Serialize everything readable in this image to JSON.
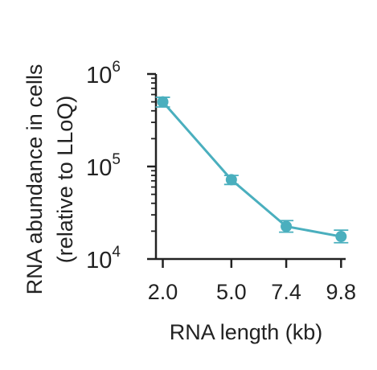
{
  "chart_data": {
    "type": "line",
    "title": "",
    "xlabel": "RNA length (kb)",
    "ylabel_line1": "RNA abundance in cells",
    "ylabel_line2": "(relative to LLoQ)",
    "yscale": "log",
    "ylim": [
      10000,
      1000000
    ],
    "xlim": [
      1.7,
      10.0
    ],
    "x_ticks": [
      2.0,
      5.0,
      7.4,
      9.8
    ],
    "x_tick_labels": [
      "2.0",
      "5.0",
      "7.4",
      "9.8"
    ],
    "y_major_ticks": [
      10000,
      100000,
      1000000
    ],
    "y_tick_labels": [
      {
        "base": "10",
        "exp": "4"
      },
      {
        "base": "10",
        "exp": "5"
      },
      {
        "base": "10",
        "exp": "6"
      }
    ],
    "grid": false,
    "legend": false,
    "color": "#4aafbe",
    "series": [
      {
        "x": [
          2.0,
          5.0,
          7.4,
          9.8
        ],
        "y": [
          500000,
          72000,
          22500,
          17500
        ],
        "error_low": [
          440000,
          64000,
          19500,
          15000
        ],
        "error_high": [
          560000,
          80000,
          26000,
          20500
        ]
      }
    ]
  }
}
